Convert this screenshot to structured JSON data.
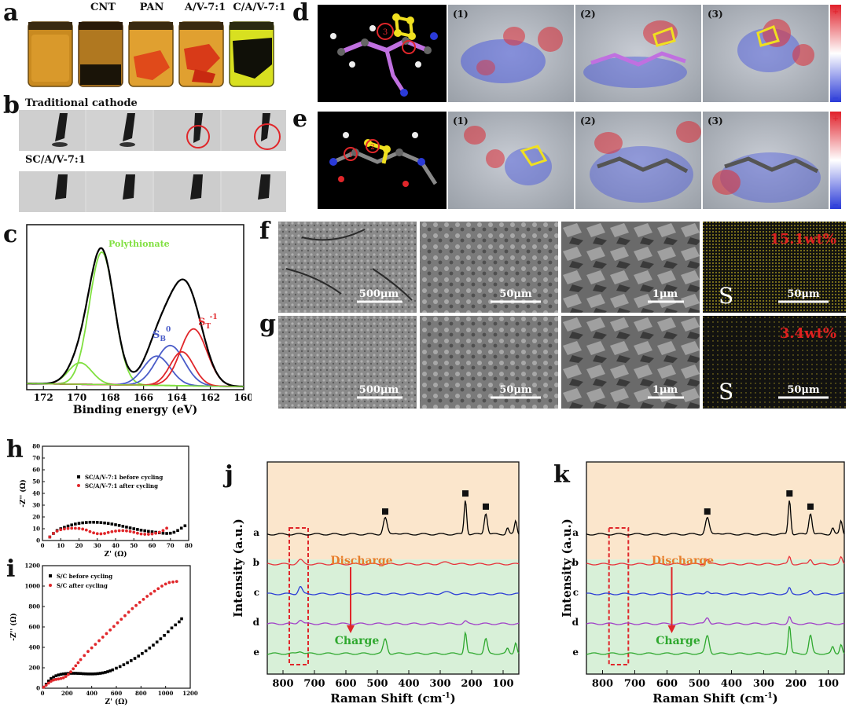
{
  "panels": {
    "a": {
      "letter": "a",
      "jar_labels": [
        "",
        "CNT",
        "PAN",
        "A/V-7:1",
        "C/A/V-7:1"
      ]
    },
    "b": {
      "letter": "b",
      "row1_label": "Traditional cathode",
      "row2_label": "SC/A/V-7:1"
    },
    "c": {
      "letter": "c",
      "annotations": {
        "polythionate": "Polythionate",
        "sb0": "S",
        "sb0_sub": "B",
        "sb0_sup": "0",
        "st1": "S",
        "st1_sub": "T",
        "st1_sup": "-1"
      }
    },
    "d": {
      "letter": "d",
      "frames": [
        "(1)",
        "(2)",
        "(3)"
      ],
      "colorbar_top": "+",
      "colorbar_bottom": "−",
      "markers": [
        "3"
      ]
    },
    "e": {
      "letter": "e",
      "frames": [
        "(1)",
        "(2)",
        "(3)"
      ],
      "colorbar_top": "+",
      "colorbar_bottom": "−",
      "markers": [
        "2",
        "1"
      ]
    },
    "f": {
      "letter": "f",
      "scale_bars": [
        "500μm",
        "50μm",
        "1μm",
        "50μm"
      ],
      "element": "S",
      "wt": "15.1wt%"
    },
    "g": {
      "letter": "g",
      "scale_bars": [
        "500μm",
        "50μm",
        "1μm",
        "50μm"
      ],
      "element": "S",
      "wt": "3.4wt%"
    },
    "h": {
      "letter": "h"
    },
    "i": {
      "letter": "i"
    },
    "j": {
      "letter": "j",
      "discharge": "Discharge",
      "charge": "Charge",
      "curve_labels": [
        "a",
        "b",
        "c",
        "d",
        "e"
      ]
    },
    "k": {
      "letter": "k",
      "discharge": "Discharge",
      "charge": "Charge",
      "curve_labels": [
        "a",
        "b",
        "c",
        "d",
        "e"
      ]
    }
  },
  "colors": {
    "green_fit": "#80e040",
    "blue_fit": "#4a5cc8",
    "red_fit": "#e0262a",
    "envelope": "#000000",
    "raman_a": "#000000",
    "raman_b": "#e8323a",
    "raman_c": "#2e3fd6",
    "raman_d": "#a040c8",
    "raman_e": "#2ea82e",
    "discharge_orange": "#e87d2a",
    "charge_green": "#2ea82e",
    "peach_bg": "#fbe6cc",
    "mint_bg": "#d8f0d8"
  },
  "chart_data": [
    {
      "panel": "c",
      "type": "line",
      "xlabel": "Binding energy (eV)",
      "ylabel": "",
      "x_ticks": [
        "172",
        "170",
        "168",
        "166",
        "164",
        "162",
        "160"
      ],
      "xlim": [
        173,
        160
      ],
      "x_reversed": true,
      "grid": false,
      "series": [
        {
          "name": "Polythionate",
          "type": "gaussian",
          "center": 168.5,
          "amplitude": 0.86,
          "width": 0.75,
          "color": "#80e040"
        },
        {
          "name": "",
          "type": "gaussian",
          "center": 169.8,
          "amplitude": 0.14,
          "width": 0.7,
          "color": "#80e040"
        },
        {
          "name": "S_B^0",
          "type": "gaussian",
          "center": 164.4,
          "amplitude": 0.26,
          "width": 0.85,
          "color": "#4a5cc8"
        },
        {
          "name": "",
          "type": "gaussian",
          "center": 165.2,
          "amplitude": 0.19,
          "width": 0.8,
          "color": "#4a5cc8"
        },
        {
          "name": "S_T^-1",
          "type": "gaussian",
          "center": 163.0,
          "amplitude": 0.37,
          "width": 0.8,
          "color": "#e0262a"
        },
        {
          "name": "",
          "type": "gaussian",
          "center": 163.7,
          "amplitude": 0.22,
          "width": 0.7,
          "color": "#e0262a"
        }
      ]
    },
    {
      "panel": "h",
      "type": "scatter",
      "xlabel": "Z' (Ω)",
      "ylabel": "-Z'' (Ω)",
      "xlim": [
        0,
        80
      ],
      "ylim": [
        0,
        80
      ],
      "x_ticks": [
        "0",
        "10",
        "20",
        "30",
        "40",
        "50",
        "60",
        "70",
        "80"
      ],
      "y_ticks": [
        "0",
        "10",
        "20",
        "30",
        "40",
        "50",
        "60",
        "70",
        "80"
      ],
      "legend_position": "top-right",
      "series": [
        {
          "name": "SC/A/V-7:1 before cycling",
          "color": "#000000",
          "x": [
            4,
            6,
            8,
            10,
            12,
            14,
            16,
            18,
            20,
            22,
            24,
            26,
            28,
            30,
            32,
            34,
            36,
            38,
            40,
            42,
            44,
            46,
            48,
            50,
            52,
            54,
            56,
            58,
            60,
            62,
            64,
            66,
            68,
            70,
            72,
            74,
            76,
            78
          ],
          "y": [
            3,
            6,
            8.5,
            10,
            11.2,
            12.3,
            13.2,
            14,
            14.6,
            15,
            15.3,
            15.5,
            15.5,
            15.4,
            15.2,
            14.9,
            14.5,
            14,
            13.4,
            12.8,
            12.1,
            11.4,
            10.7,
            10,
            9.4,
            8.8,
            8.3,
            7.8,
            7.4,
            7,
            6.6,
            6.2,
            6,
            6.2,
            7,
            8.5,
            10.5,
            12.5
          ]
        },
        {
          "name": "SC/A/V-7:1 after cycling",
          "color": "#e0262a",
          "x": [
            4,
            6,
            8,
            10,
            12,
            14,
            16,
            18,
            20,
            22,
            24,
            26,
            28,
            30,
            32,
            34,
            36,
            38,
            40,
            42,
            44,
            46,
            48,
            50,
            52,
            54,
            56,
            58,
            60,
            62,
            64,
            66,
            68
          ],
          "y": [
            3,
            6,
            8,
            9.2,
            9.8,
            10.2,
            10.4,
            10.4,
            10.2,
            9.7,
            8.9,
            7.6,
            6.5,
            5.8,
            5.7,
            6,
            6.8,
            7.5,
            8.0,
            8.3,
            8.4,
            8.2,
            7.7,
            7.0,
            6.2,
            5.6,
            5.3,
            5.3,
            5.6,
            6.2,
            7.0,
            8.5,
            10.5
          ]
        }
      ]
    },
    {
      "panel": "i",
      "type": "scatter",
      "xlabel": "Z' (Ω)",
      "ylabel": "-Z'' (Ω)",
      "xlim": [
        0,
        1200
      ],
      "ylim": [
        0,
        1200
      ],
      "x_ticks": [
        "0",
        "200",
        "400",
        "600",
        "800",
        "1000",
        "1200"
      ],
      "y_ticks": [
        "0",
        "200",
        "400",
        "600",
        "800",
        "1000",
        "1200"
      ],
      "legend_position": "top-left",
      "series": [
        {
          "name": "S/C before cycling",
          "color": "#000000",
          "x": [
            10,
            30,
            50,
            70,
            90,
            110,
            130,
            150,
            170,
            190,
            210,
            230,
            250,
            270,
            290,
            310,
            330,
            350,
            370,
            390,
            410,
            430,
            450,
            470,
            490,
            510,
            530,
            550,
            570,
            600,
            630,
            660,
            690,
            720,
            750,
            780,
            810,
            840,
            870,
            900,
            930,
            960,
            990,
            1020,
            1050,
            1080,
            1110,
            1130
          ],
          "y": [
            10,
            40,
            70,
            95,
            110,
            122,
            130,
            136,
            140,
            143,
            145,
            146,
            146,
            146,
            145,
            144,
            142,
            141,
            140,
            140,
            140,
            141,
            143,
            146,
            150,
            155,
            162,
            170,
            180,
            196,
            212,
            230,
            250,
            270,
            292,
            315,
            340,
            366,
            394,
            422,
            452,
            484,
            517,
            552,
            590,
            620,
            650,
            680
          ]
        },
        {
          "name": "S/C after cycling",
          "color": "#e0262a",
          "x": [
            10,
            30,
            50,
            70,
            90,
            110,
            130,
            150,
            170,
            190,
            210,
            230,
            250,
            270,
            290,
            310,
            340,
            370,
            400,
            430,
            460,
            490,
            520,
            550,
            580,
            610,
            640,
            670,
            700,
            730,
            760,
            790,
            820,
            850,
            880,
            910,
            940,
            970,
            1000,
            1030,
            1060,
            1090
          ],
          "y": [
            10,
            30,
            50,
            68,
            80,
            86,
            90,
            95,
            102,
            115,
            135,
            160,
            190,
            220,
            250,
            280,
            320,
            360,
            395,
            430,
            465,
            500,
            535,
            570,
            605,
            640,
            675,
            710,
            745,
            780,
            810,
            840,
            870,
            900,
            925,
            950,
            975,
            1000,
            1020,
            1035,
            1040,
            1045
          ]
        }
      ]
    },
    {
      "panel": "j",
      "type": "line",
      "xlabel": "Raman Shift (cm-1)",
      "ylabel": "Intensity (a.u.)",
      "x_reversed": true,
      "xlim": [
        850,
        50
      ],
      "x_ticks": [
        "800",
        "700",
        "600",
        "500",
        "400",
        "300",
        "200",
        "100"
      ],
      "highlight_range": [
        780,
        720
      ],
      "peak_markers_x": [
        475,
        220,
        155
      ],
      "series_labels": [
        "a",
        "b",
        "c",
        "d",
        "e"
      ],
      "series": [
        {
          "name": "a",
          "color": "#000000",
          "baseline": 0.0,
          "peaks": [
            [
              475,
              1.0,
              6
            ],
            [
              440,
              0.08,
              8
            ],
            [
              220,
              2.1,
              4
            ],
            [
              155,
              1.3,
              5
            ],
            [
              86,
              0.4,
              4
            ],
            [
              60,
              0.8,
              4
            ]
          ]
        },
        {
          "name": "b",
          "color": "#e8323a",
          "baseline": -1.0,
          "peaks": [
            [
              745,
              0.25,
              8
            ],
            [
              280,
              0.1,
              15
            ]
          ]
        },
        {
          "name": "c",
          "color": "#2e3fd6",
          "baseline": -2.0,
          "peaks": [
            [
              745,
              0.45,
              6
            ],
            [
              280,
              0.1,
              15
            ]
          ]
        },
        {
          "name": "d",
          "color": "#a040c8",
          "baseline": -3.0,
          "peaks": [
            [
              745,
              0.25,
              7
            ],
            [
              220,
              0.15,
              5
            ]
          ]
        },
        {
          "name": "e",
          "color": "#2ea82e",
          "baseline": -4.0,
          "peaks": [
            [
              745,
              0.15,
              8
            ],
            [
              475,
              0.9,
              6
            ],
            [
              220,
              1.3,
              4
            ],
            [
              155,
              0.9,
              5
            ],
            [
              86,
              0.3,
              4
            ],
            [
              60,
              0.7,
              4
            ]
          ]
        }
      ]
    },
    {
      "panel": "k",
      "type": "line",
      "xlabel": "Raman Shift (cm-1)",
      "ylabel": "Intensity (a.u.)",
      "x_reversed": true,
      "xlim": [
        850,
        50
      ],
      "x_ticks": [
        "800",
        "700",
        "600",
        "500",
        "400",
        "300",
        "200",
        "100"
      ],
      "highlight_range": [
        780,
        720
      ],
      "peak_markers_x": [
        475,
        220,
        155
      ],
      "series_labels": [
        "a",
        "b",
        "c",
        "d",
        "e"
      ],
      "series": [
        {
          "name": "a",
          "color": "#000000",
          "baseline": 0.0,
          "peaks": [
            [
              475,
              1.0,
              6
            ],
            [
              440,
              0.08,
              8
            ],
            [
              220,
              2.1,
              4
            ],
            [
              155,
              1.3,
              5
            ],
            [
              86,
              0.4,
              4
            ],
            [
              60,
              0.8,
              4
            ]
          ]
        },
        {
          "name": "b",
          "color": "#e8323a",
          "baseline": -1.0,
          "peaks": [
            [
              475,
              0.3,
              6
            ],
            [
              220,
              0.45,
              4
            ],
            [
              155,
              0.3,
              5
            ],
            [
              60,
              0.4,
              4
            ]
          ]
        },
        {
          "name": "c",
          "color": "#2e3fd6",
          "baseline": -2.0,
          "peaks": [
            [
              475,
              0.2,
              6
            ],
            [
              220,
              0.35,
              4
            ],
            [
              155,
              0.2,
              5
            ]
          ]
        },
        {
          "name": "d",
          "color": "#a040c8",
          "baseline": -3.0,
          "peaks": [
            [
              475,
              0.4,
              6
            ],
            [
              220,
              0.4,
              4
            ]
          ]
        },
        {
          "name": "e",
          "color": "#2ea82e",
          "baseline": -4.0,
          "peaks": [
            [
              475,
              1.1,
              6
            ],
            [
              220,
              1.7,
              4
            ],
            [
              155,
              1.1,
              5
            ],
            [
              86,
              0.4,
              4
            ],
            [
              60,
              0.6,
              4
            ]
          ]
        }
      ]
    }
  ]
}
